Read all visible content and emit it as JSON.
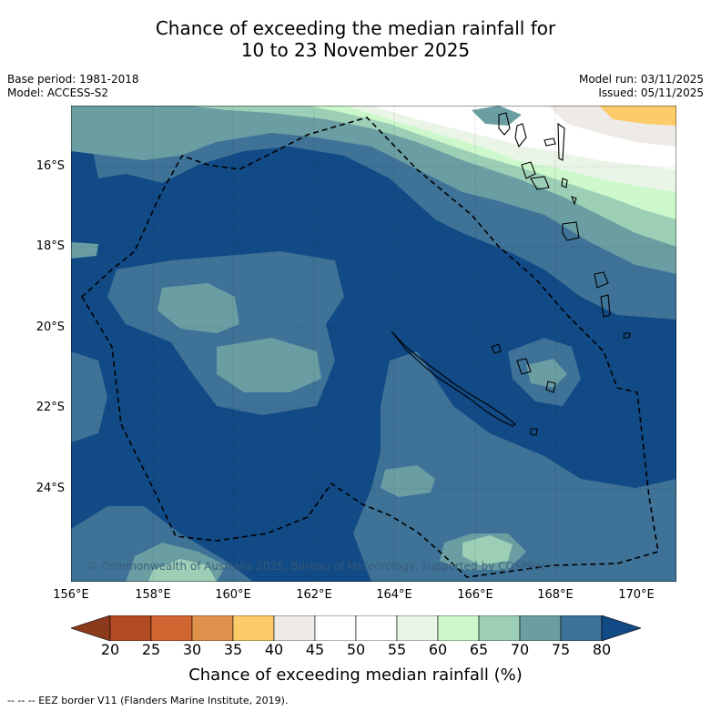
{
  "title": {
    "line1": "Chance of exceeding the median rainfall for",
    "line2": "10 to 23 November 2025"
  },
  "meta": {
    "base_period": "Base period: 1981-2018",
    "model": "Model: ACCESS-S2",
    "model_run": "Model run: 03/11/2025",
    "issued": "Issued: 05/11/2025"
  },
  "map": {
    "lat_labels": [
      "16°S",
      "18°S",
      "20°S",
      "22°S",
      "24°S"
    ],
    "lon_labels": [
      "156°E",
      "158°E",
      "160°E",
      "162°E",
      "164°E",
      "166°E",
      "168°E",
      "170°E"
    ],
    "copyright": "© Commonwealth of Australia 2025, Bureau of Meteorology, supported by COSPPac",
    "ocean_color": "#124a86",
    "features": [
      "New Caledonia",
      "Vanuatu",
      "Loyalty Islands",
      "EEZ border"
    ]
  },
  "colorbar": {
    "title": "Chance of exceeding median rainfall (%)",
    "ticks": [
      "20",
      "25",
      "30",
      "35",
      "40",
      "45",
      "50",
      "55",
      "60",
      "65",
      "70",
      "75",
      "80"
    ],
    "colors": [
      "#8c3a1c",
      "#b24a22",
      "#cf6530",
      "#e0914b",
      "#fccc6a",
      "#eeebe6",
      "#ffffff",
      "#ffffff",
      "#eaf5e8",
      "#ccf8cc",
      "#9ccfb6",
      "#6a9ea3",
      "#3e7297",
      "#124a86"
    ]
  },
  "footer": "--  --  -- EEZ border V11 (Flanders Marine Institute, 2019)."
}
